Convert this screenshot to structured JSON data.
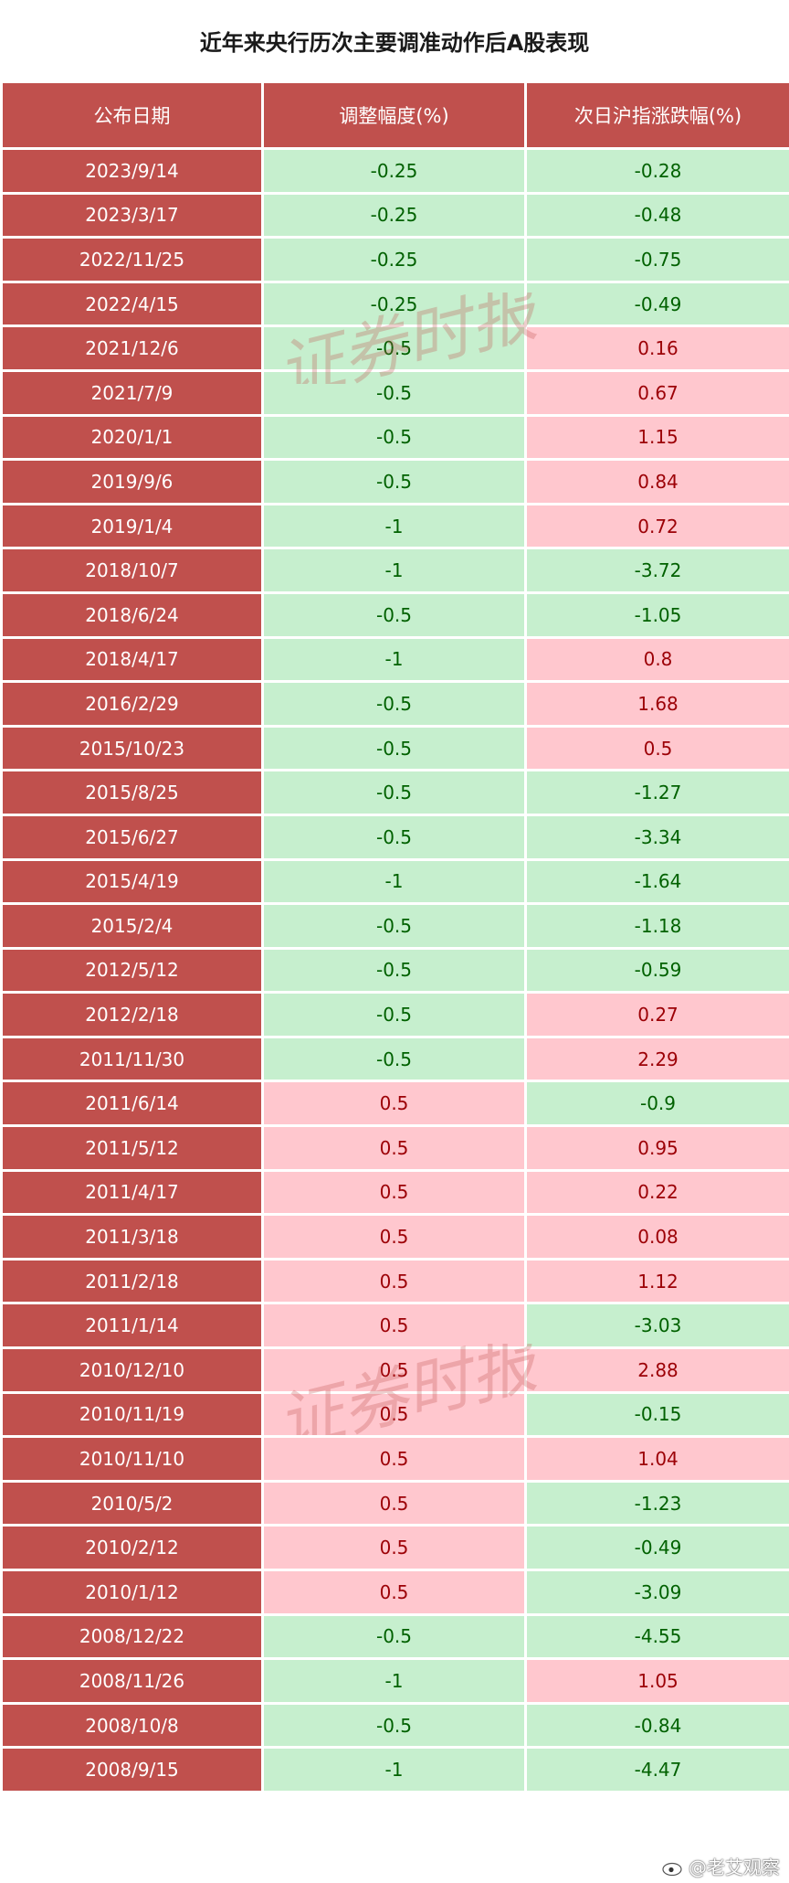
{
  "title": "近年来央行历次主要调准动作后A股表现",
  "headers": [
    "公布日期",
    "调整幅度(%)",
    "次日沪指涨跌幅(%)"
  ],
  "rows": [
    {
      "date": "2023/9/14",
      "adjust": "-0.25",
      "change": "-0.28"
    },
    {
      "date": "2023/3/17",
      "adjust": "-0.25",
      "change": "-0.48"
    },
    {
      "date": "2022/11/25",
      "adjust": "-0.25",
      "change": "-0.75"
    },
    {
      "date": "2022/4/15",
      "adjust": "-0.25",
      "change": "-0.49"
    },
    {
      "date": "2021/12/6",
      "adjust": "-0.5",
      "change": "0.16"
    },
    {
      "date": "2021/7/9",
      "adjust": "-0.5",
      "change": "0.67"
    },
    {
      "date": "2020/1/1",
      "adjust": "-0.5",
      "change": "1.15"
    },
    {
      "date": "2019/9/6",
      "adjust": "-0.5",
      "change": "0.84"
    },
    {
      "date": "2019/1/4",
      "adjust": "-1",
      "change": "0.72"
    },
    {
      "date": "2018/10/7",
      "adjust": "-1",
      "change": "-3.72"
    },
    {
      "date": "2018/6/24",
      "adjust": "-0.5",
      "change": "-1.05"
    },
    {
      "date": "2018/4/17",
      "adjust": "-1",
      "change": "0.8"
    },
    {
      "date": "2016/2/29",
      "adjust": "-0.5",
      "change": "1.68"
    },
    {
      "date": "2015/10/23",
      "adjust": "-0.5",
      "change": "0.5"
    },
    {
      "date": "2015/8/25",
      "adjust": "-0.5",
      "change": "-1.27"
    },
    {
      "date": "2015/6/27",
      "adjust": "-0.5",
      "change": "-3.34"
    },
    {
      "date": "2015/4/19",
      "adjust": "-1",
      "change": "-1.64"
    },
    {
      "date": "2015/2/4",
      "adjust": "-0.5",
      "change": "-1.18"
    },
    {
      "date": "2012/5/12",
      "adjust": "-0.5",
      "change": "-0.59"
    },
    {
      "date": "2012/2/18",
      "adjust": "-0.5",
      "change": "0.27"
    },
    {
      "date": "2011/11/30",
      "adjust": "-0.5",
      "change": "2.29"
    },
    {
      "date": "2011/6/14",
      "adjust": "0.5",
      "change": "-0.9"
    },
    {
      "date": "2011/5/12",
      "adjust": "0.5",
      "change": "0.95"
    },
    {
      "date": "2011/4/17",
      "adjust": "0.5",
      "change": "0.22"
    },
    {
      "date": "2011/3/18",
      "adjust": "0.5",
      "change": "0.08"
    },
    {
      "date": "2011/2/18",
      "adjust": "0.5",
      "change": "1.12"
    },
    {
      "date": "2011/1/14",
      "adjust": "0.5",
      "change": "-3.03"
    },
    {
      "date": "2010/12/10",
      "adjust": "0.5",
      "change": "2.88"
    },
    {
      "date": "2010/11/19",
      "adjust": "0.5",
      "change": "-0.15"
    },
    {
      "date": "2010/11/10",
      "adjust": "0.5",
      "change": "1.04"
    },
    {
      "date": "2010/5/2",
      "adjust": "0.5",
      "change": "-1.23"
    },
    {
      "date": "2010/2/12",
      "adjust": "0.5",
      "change": "-0.49"
    },
    {
      "date": "2010/1/12",
      "adjust": "0.5",
      "change": "-3.09"
    },
    {
      "date": "2008/12/22",
      "adjust": "-0.5",
      "change": "-4.55"
    },
    {
      "date": "2008/11/26",
      "adjust": "-1",
      "change": "1.05"
    },
    {
      "date": "2008/10/8",
      "adjust": "-0.5",
      "change": "-0.84"
    },
    {
      "date": "2008/9/15",
      "adjust": "-1",
      "change": "-4.47"
    }
  ],
  "watermark_text": "证券时报",
  "credit": {
    "text": "@老艾观察",
    "icon": "weibo-icon"
  },
  "colors": {
    "header_bg": "#c0504d",
    "date_bg": "#c0504d",
    "positive_bg": "#ffc7ce",
    "positive_text": "#9c0006",
    "negative_bg": "#c6efce",
    "negative_text": "#006100"
  }
}
